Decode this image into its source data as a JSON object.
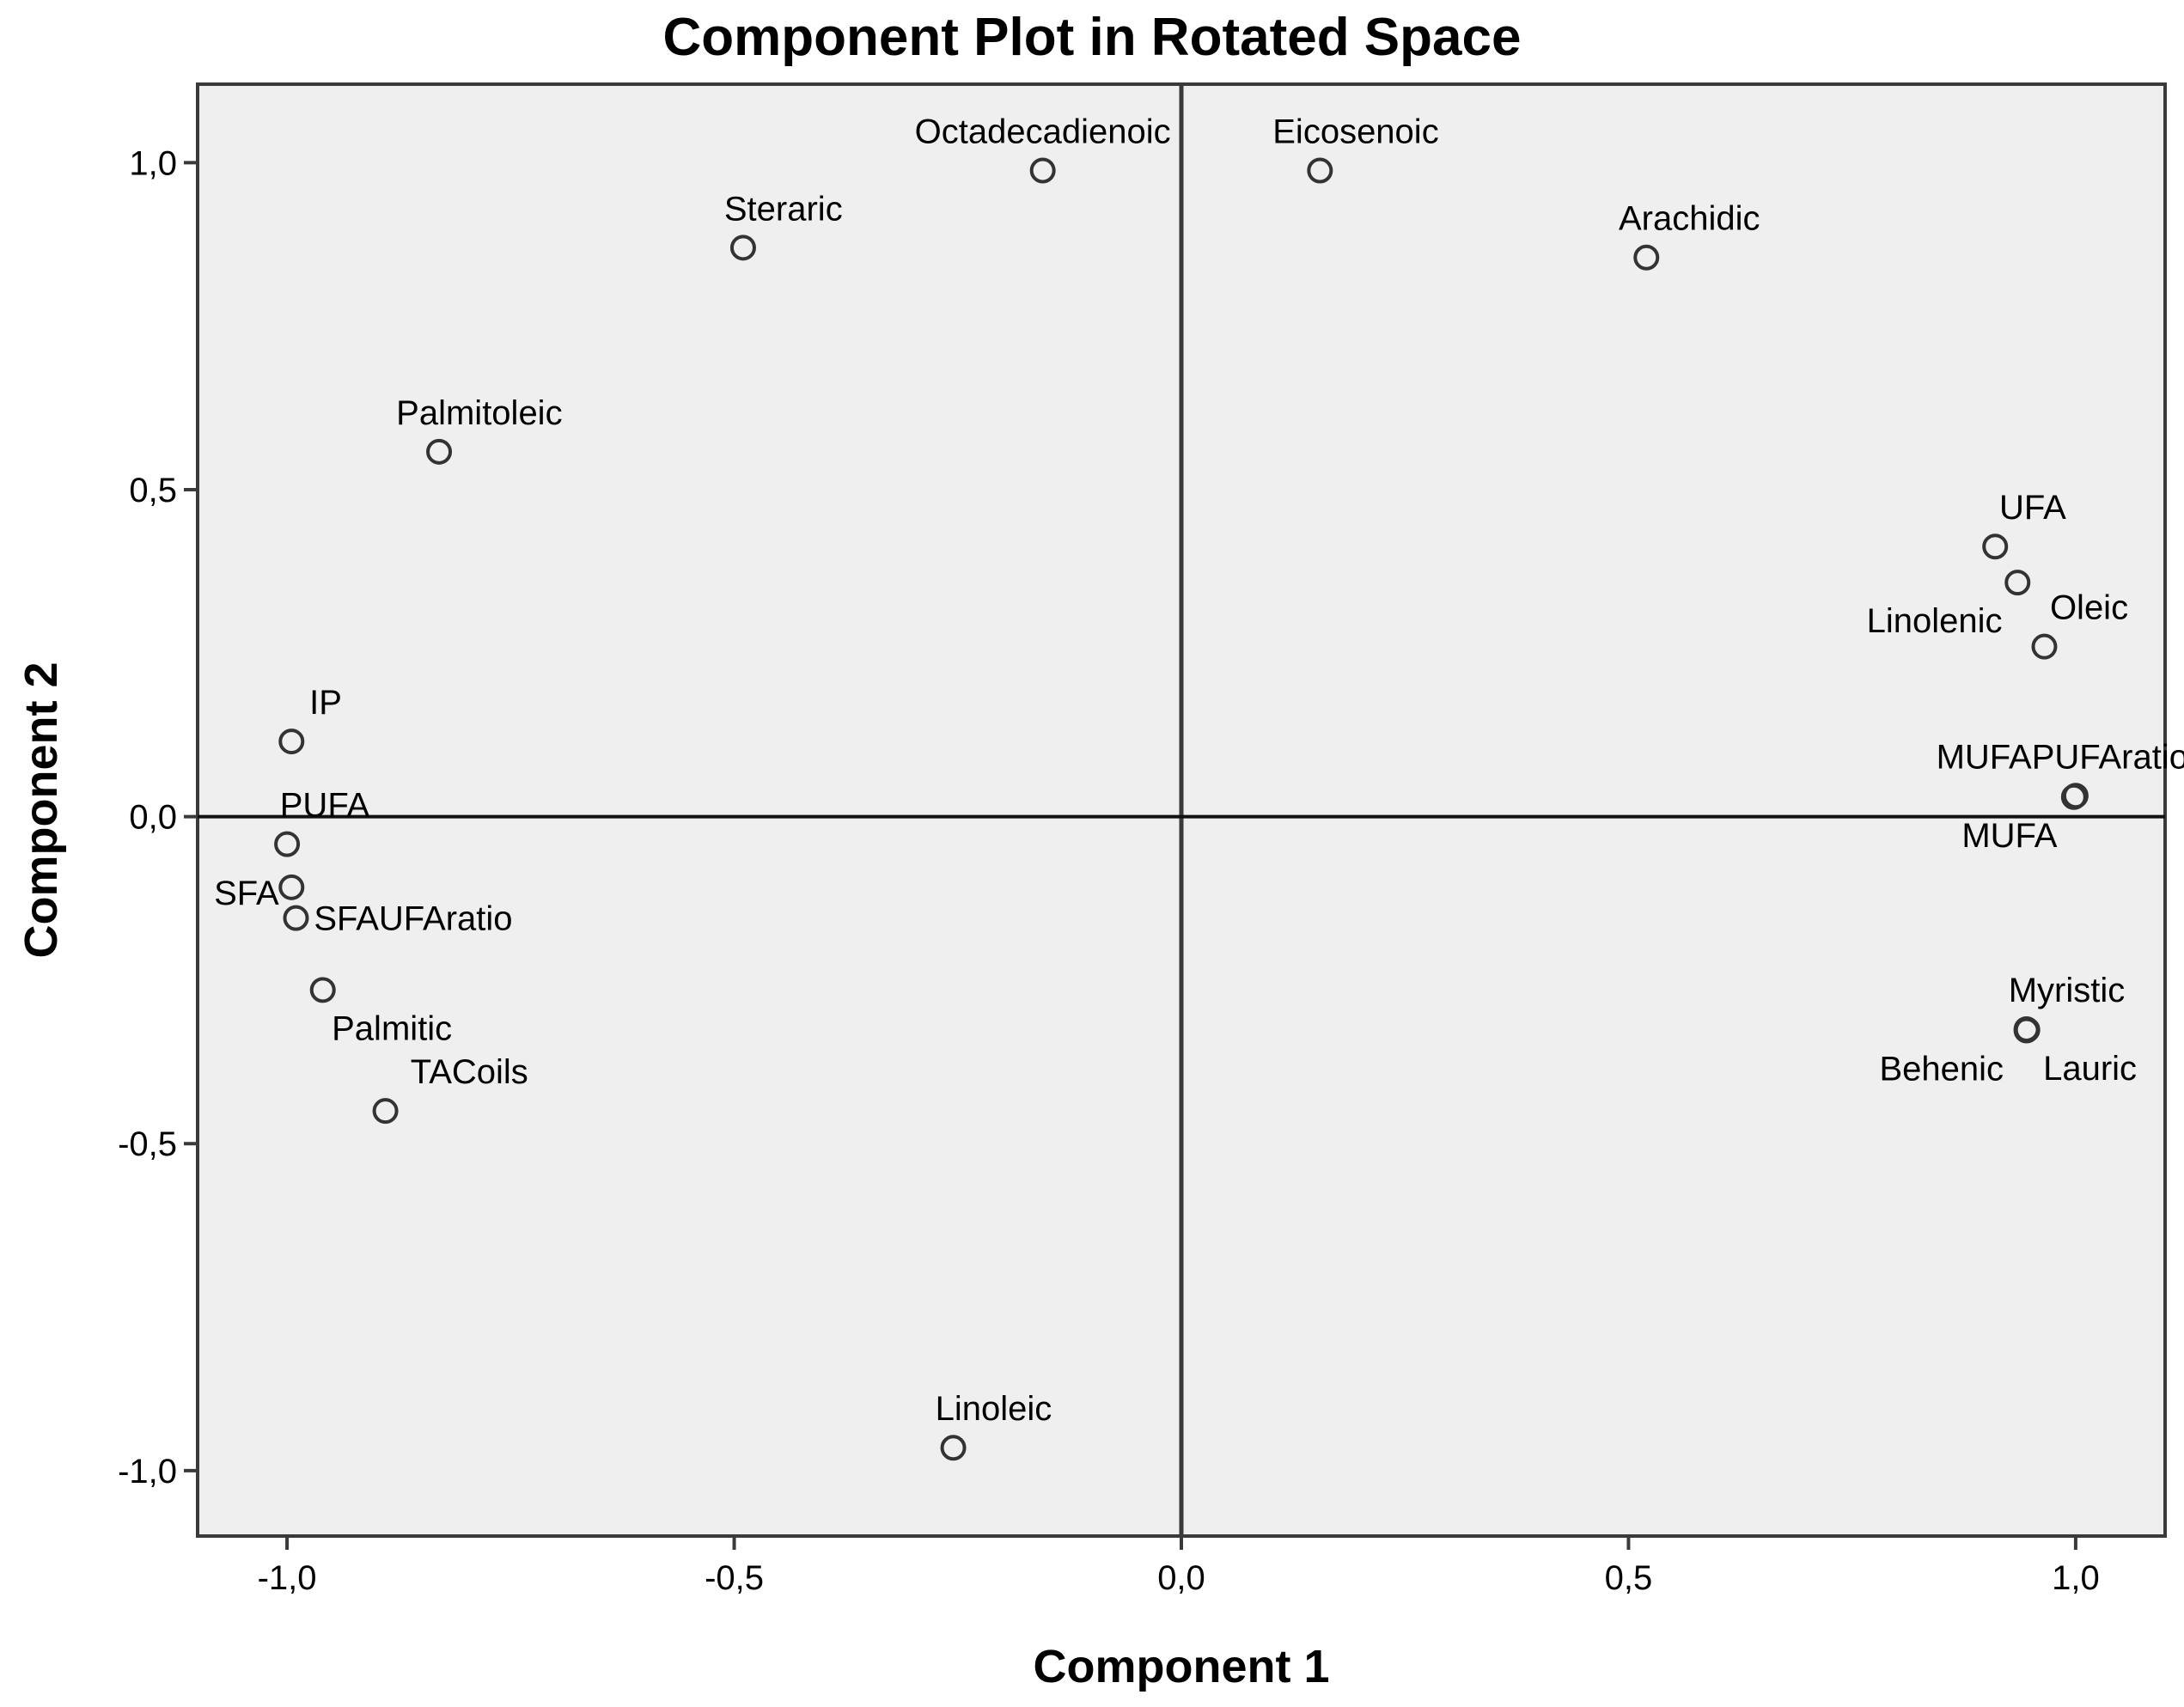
{
  "chart_data": {
    "type": "scatter",
    "title": "Component Plot in Rotated Space",
    "xlabel": "Component 1",
    "ylabel": "Component 2",
    "xlim": [
      -1.1,
      1.1
    ],
    "ylim": [
      -1.1,
      1.12
    ],
    "xticks": [
      -1.0,
      -0.5,
      0.0,
      0.5,
      1.0
    ],
    "yticks": [
      -1.0,
      -0.5,
      0.0,
      0.5,
      1.0
    ],
    "xtick_labels": [
      "-1,0",
      "-0,5",
      "0,0",
      "0,5",
      "1,0"
    ],
    "ytick_labels": [
      "-1,0",
      "-0,5",
      "0,0",
      "0,5",
      "1,0"
    ],
    "grid": false,
    "reference_lines": {
      "x": 0,
      "y": 0
    },
    "colors": {
      "plot_background": "#efefef",
      "frame": "#3a3a3a",
      "marker": "#333333",
      "text": "#000000"
    },
    "points": [
      {
        "name": "Octadecadienoic",
        "x": -0.155,
        "y": 0.988,
        "label_anchor": "middle",
        "label_dx": 0,
        "label_dy": -1
      },
      {
        "name": "Eicosenoic",
        "x": 0.155,
        "y": 0.988,
        "label_anchor": "middle",
        "label_dx": 0.04,
        "label_dy": -1
      },
      {
        "name": "Steraric",
        "x": -0.49,
        "y": 0.87,
        "label_anchor": "middle",
        "label_dx": 0.045,
        "label_dy": -1
      },
      {
        "name": "Arachidic",
        "x": 0.52,
        "y": 0.855,
        "label_anchor": "middle",
        "label_dx": 0.048,
        "label_dy": -1
      },
      {
        "name": "Palmitoleic",
        "x": -0.83,
        "y": 0.558,
        "label_anchor": "middle",
        "label_dx": 0.045,
        "label_dy": -1
      },
      {
        "name": "UFA",
        "x": 0.91,
        "y": 0.413,
        "label_anchor": "middle",
        "label_dx": 0.042,
        "label_dy": -1
      },
      {
        "name": "Linolenic",
        "x": 0.935,
        "y": 0.358,
        "label_anchor": "end",
        "label_dx": -0.017,
        "label_dy": 1
      },
      {
        "name": "Oleic",
        "x": 0.965,
        "y": 0.26,
        "label_anchor": "middle",
        "label_dx": 0.05,
        "label_dy": -1
      },
      {
        "name": "MUFAPUFAratio",
        "x": 1.0,
        "y": 0.032,
        "label_anchor": "middle",
        "label_dx": -0.015,
        "label_dy": -1
      },
      {
        "name": "MUFA",
        "x": 0.998,
        "y": 0.03,
        "label_anchor": "middle",
        "label_dx": -0.072,
        "label_dy": 1
      },
      {
        "name": "IP",
        "x": -0.995,
        "y": 0.115,
        "label_anchor": "start",
        "label_dx": 0.02,
        "label_dy": -1
      },
      {
        "name": "PUFA",
        "x": -1.0,
        "y": -0.042,
        "label_anchor": "start",
        "label_dx": -0.008,
        "label_dy": -1
      },
      {
        "name": "SFA",
        "x": -0.995,
        "y": -0.108,
        "label_anchor": "end",
        "label_dx": -0.014,
        "label_dy": 2
      },
      {
        "name": "SFAUFAratio",
        "x": -0.99,
        "y": -0.155,
        "label_anchor": "start",
        "label_dx": 0.02,
        "label_dy": 0
      },
      {
        "name": "Palmitic",
        "x": -0.96,
        "y": -0.265,
        "label_anchor": "start",
        "label_dx": 0.01,
        "label_dy": 1
      },
      {
        "name": "TACoils",
        "x": -0.89,
        "y": -0.45,
        "label_anchor": "start",
        "label_dx": 0.028,
        "label_dy": -1
      },
      {
        "name": "Myristic",
        "x": 0.945,
        "y": -0.325,
        "label_anchor": "middle",
        "label_dx": 0.045,
        "label_dy": -1
      },
      {
        "name": "Behenic",
        "x": 0.945,
        "y": -0.327,
        "label_anchor": "middle",
        "label_dx": -0.095,
        "label_dy": 1
      },
      {
        "name": "Lauric",
        "x": 0.946,
        "y": -0.326,
        "label_anchor": "middle",
        "label_dx": 0.07,
        "label_dy": 1
      },
      {
        "name": "Linoleic",
        "x": -0.255,
        "y": -0.965,
        "label_anchor": "middle",
        "label_dx": 0.045,
        "label_dy": -1
      }
    ]
  }
}
